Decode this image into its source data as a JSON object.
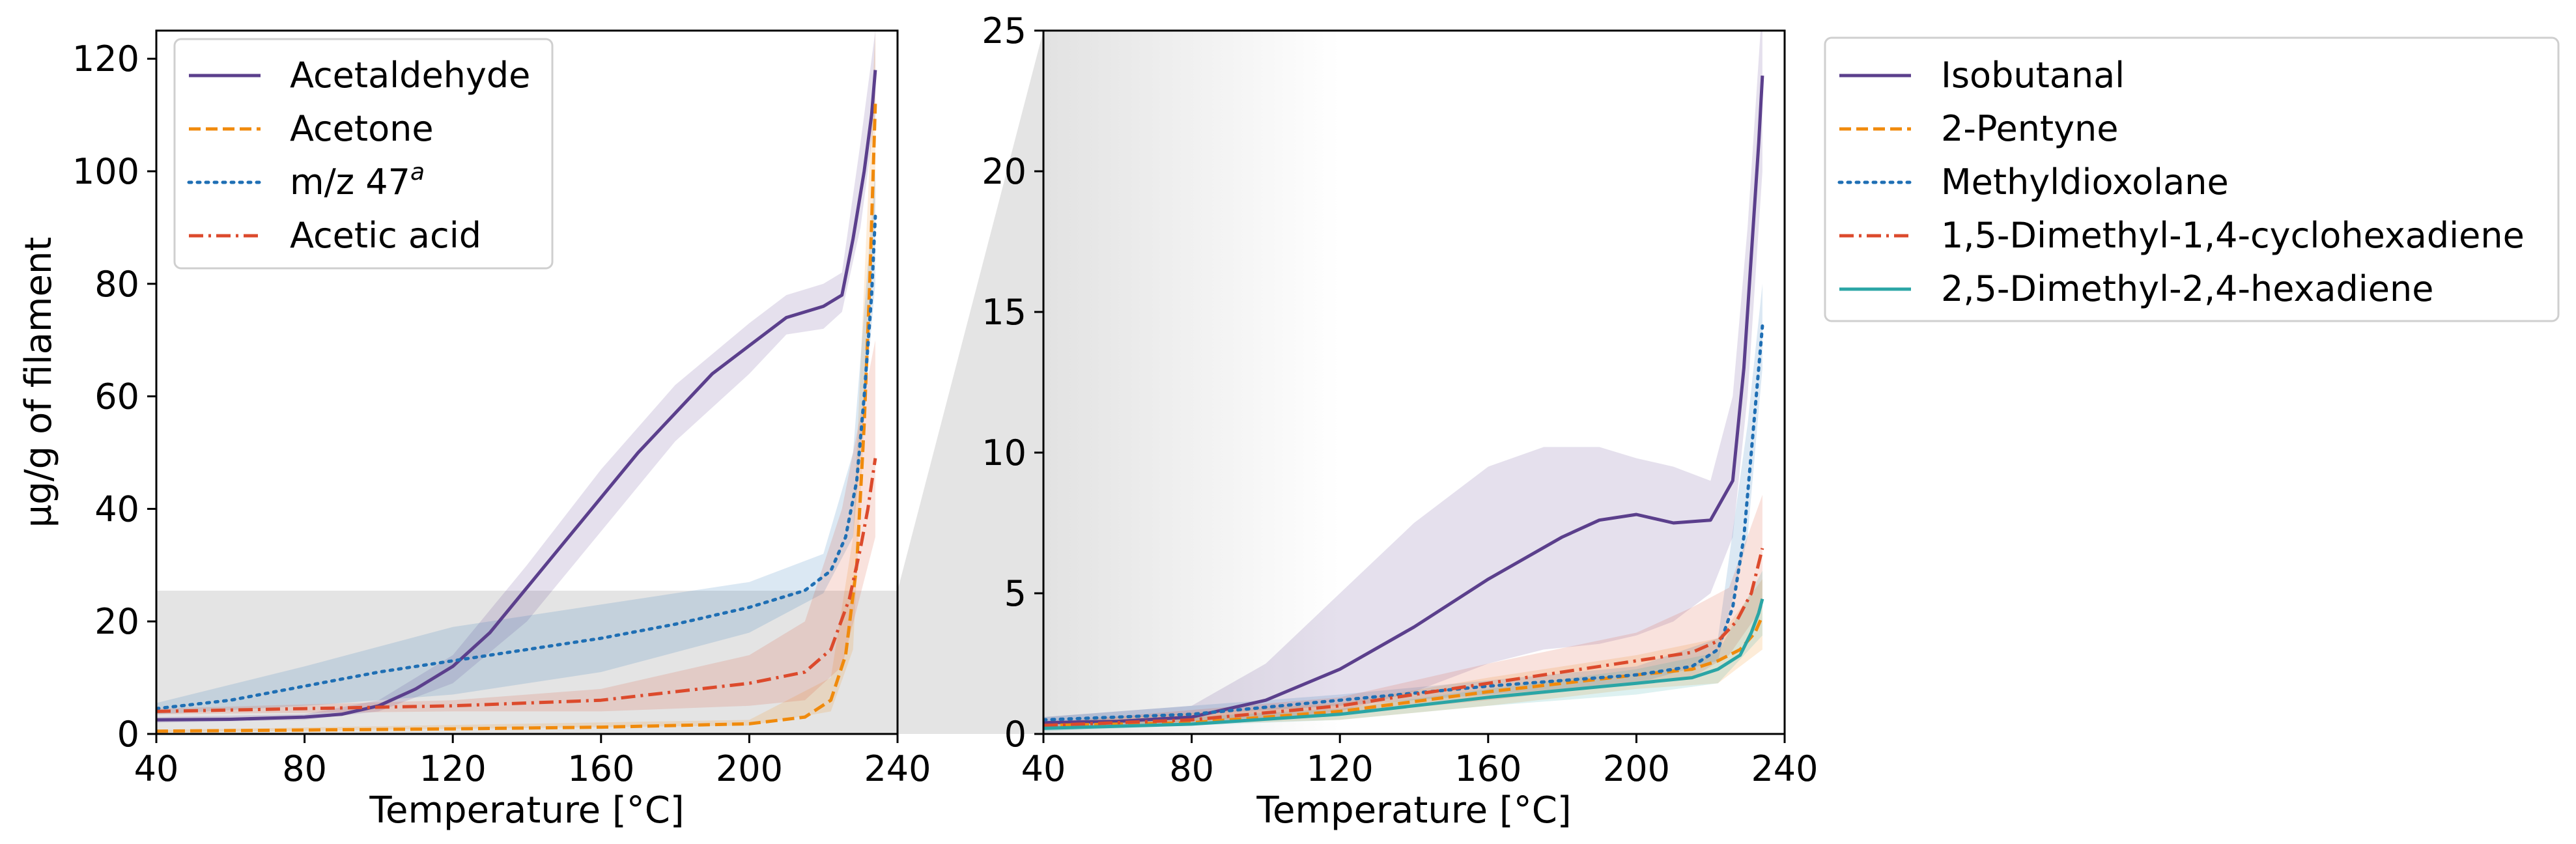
{
  "chart_data": [
    {
      "type": "line",
      "xlabel": "Temperature [°C]",
      "ylabel": "µg/g of filament",
      "xlim": [
        40,
        240
      ],
      "ylim": [
        0,
        125
      ],
      "xticks": [
        40,
        80,
        120,
        160,
        200,
        240
      ],
      "yticks": [
        0,
        20,
        40,
        60,
        80,
        100,
        120
      ],
      "legend_position": "top-left",
      "zoom_region": {
        "x": [
          40,
          240
        ],
        "y": [
          0,
          25
        ]
      },
      "series": [
        {
          "name": "Acetaldehyde",
          "color": "#5b3f8c",
          "style": "solid",
          "points": [
            [
              40,
              2.5
            ],
            [
              60,
              2.6
            ],
            [
              80,
              3
            ],
            [
              90,
              3.5
            ],
            [
              100,
              5
            ],
            [
              110,
              8
            ],
            [
              120,
              12
            ],
            [
              130,
              18
            ],
            [
              140,
              26
            ],
            [
              150,
              34
            ],
            [
              160,
              42
            ],
            [
              170,
              50
            ],
            [
              180,
              57
            ],
            [
              190,
              64
            ],
            [
              200,
              69
            ],
            [
              210,
              74
            ],
            [
              220,
              76
            ],
            [
              225,
              78
            ],
            [
              228,
              88
            ],
            [
              231,
              100
            ],
            [
              233,
              110
            ],
            [
              234,
              118
            ]
          ],
          "band": [
            [
              40,
              2,
              3
            ],
            [
              80,
              2.5,
              3.5
            ],
            [
              100,
              4,
              6
            ],
            [
              120,
              9,
              14
            ],
            [
              140,
              20,
              30
            ],
            [
              160,
              36,
              47
            ],
            [
              180,
              52,
              62
            ],
            [
              200,
              64,
              73
            ],
            [
              210,
              71,
              78
            ],
            [
              220,
              72,
              80
            ],
            [
              225,
              75,
              82
            ],
            [
              230,
              90,
              105
            ],
            [
              234,
              110,
              125
            ]
          ]
        },
        {
          "name": "Acetone",
          "color": "#f08a0c",
          "style": "dashed",
          "points": [
            [
              40,
              0.5
            ],
            [
              80,
              0.7
            ],
            [
              120,
              0.9
            ],
            [
              160,
              1.2
            ],
            [
              200,
              1.8
            ],
            [
              215,
              3
            ],
            [
              222,
              6
            ],
            [
              226,
              14
            ],
            [
              229,
              30
            ],
            [
              231,
              55
            ],
            [
              232.5,
              80
            ],
            [
              234,
              112
            ]
          ],
          "band": [
            [
              40,
              0.3,
              0.7
            ],
            [
              200,
              1.5,
              2.5
            ],
            [
              222,
              4,
              10
            ],
            [
              228,
              15,
              35
            ],
            [
              234,
              95,
              125
            ]
          ]
        },
        {
          "name": "m/z 47",
          "name_superscript": "a",
          "color": "#1f6fb4",
          "style": "dotted",
          "points": [
            [
              40,
              4.5
            ],
            [
              60,
              6
            ],
            [
              80,
              8.5
            ],
            [
              100,
              11
            ],
            [
              120,
              13
            ],
            [
              140,
              15
            ],
            [
              160,
              17
            ],
            [
              180,
              19.5
            ],
            [
              200,
              22.5
            ],
            [
              215,
              25.5
            ],
            [
              222,
              29
            ],
            [
              226,
              35
            ],
            [
              229,
              45
            ],
            [
              231,
              60
            ],
            [
              233,
              78
            ],
            [
              234,
              92
            ]
          ],
          "band": [
            [
              40,
              3.5,
              5.5
            ],
            [
              80,
              5,
              12
            ],
            [
              120,
              7,
              19
            ],
            [
              160,
              11,
              23
            ],
            [
              200,
              18,
              27
            ],
            [
              220,
              25,
              32
            ],
            [
              228,
              35,
              50
            ],
            [
              234,
              80,
              100
            ]
          ]
        },
        {
          "name": "Acetic acid",
          "color": "#dc4a2c",
          "style": "dashdot",
          "points": [
            [
              40,
              4
            ],
            [
              80,
              4.5
            ],
            [
              120,
              5
            ],
            [
              160,
              6
            ],
            [
              200,
              9
            ],
            [
              215,
              11
            ],
            [
              222,
              15
            ],
            [
              227,
              24
            ],
            [
              230,
              33
            ],
            [
              232,
              40
            ],
            [
              234,
              49
            ]
          ],
          "band": [
            [
              40,
              3.5,
              4.5
            ],
            [
              120,
              4,
              6
            ],
            [
              160,
              4,
              8
            ],
            [
              200,
              5,
              14
            ],
            [
              215,
              6,
              20
            ],
            [
              225,
              12,
              40
            ],
            [
              234,
              35,
              70
            ]
          ]
        }
      ]
    },
    {
      "type": "line",
      "xlabel": "Temperature [°C]",
      "ylabel": "",
      "xlim": [
        40,
        240
      ],
      "ylim": [
        0,
        25
      ],
      "xticks": [
        40,
        80,
        120,
        160,
        200,
        240
      ],
      "yticks": [
        0,
        5,
        10,
        15,
        20,
        25
      ],
      "legend_position": "outside-right",
      "series": [
        {
          "name": "Isobutanal",
          "color": "#5b3f8c",
          "style": "solid",
          "points": [
            [
              40,
              0.4
            ],
            [
              60,
              0.45
            ],
            [
              80,
              0.6
            ],
            [
              100,
              1.2
            ],
            [
              120,
              2.3
            ],
            [
              140,
              3.8
            ],
            [
              160,
              5.5
            ],
            [
              180,
              7
            ],
            [
              190,
              7.6
            ],
            [
              200,
              7.8
            ],
            [
              210,
              7.5
            ],
            [
              220,
              7.6
            ],
            [
              226,
              9
            ],
            [
              229,
              13
            ],
            [
              231,
              17
            ],
            [
              233,
              21
            ],
            [
              234,
              23.4
            ]
          ],
          "band": [
            [
              40,
              0.2,
              0.6
            ],
            [
              80,
              0.3,
              1
            ],
            [
              100,
              0.5,
              2.5
            ],
            [
              120,
              0.8,
              5
            ],
            [
              140,
              1.5,
              7.5
            ],
            [
              160,
              2.5,
              9.5
            ],
            [
              175,
              3,
              10.2
            ],
            [
              190,
              3.2,
              10.2
            ],
            [
              200,
              3.5,
              9.8
            ],
            [
              210,
              4,
              9.5
            ],
            [
              220,
              5,
              9
            ],
            [
              226,
              7,
              12
            ],
            [
              230,
              12,
              18
            ],
            [
              234,
              20,
              26
            ]
          ]
        },
        {
          "name": "2-Pentyne",
          "color": "#f08a0c",
          "style": "dashed",
          "points": [
            [
              40,
              0.3
            ],
            [
              80,
              0.4
            ],
            [
              120,
              0.8
            ],
            [
              160,
              1.5
            ],
            [
              200,
              2.1
            ],
            [
              215,
              2.3
            ],
            [
              222,
              2.6
            ],
            [
              228,
              3
            ],
            [
              232,
              3.6
            ],
            [
              234,
              4.2
            ]
          ],
          "band": [
            [
              40,
              0.2,
              0.4
            ],
            [
              120,
              0.5,
              1.1
            ],
            [
              160,
              1,
              2
            ],
            [
              200,
              1.6,
              2.8
            ],
            [
              222,
              1.8,
              3.4
            ],
            [
              234,
              3,
              5.5
            ]
          ]
        },
        {
          "name": "Methyldioxolane",
          "color": "#1f6fb4",
          "style": "dotted",
          "points": [
            [
              40,
              0.5
            ],
            [
              80,
              0.7
            ],
            [
              120,
              1.2
            ],
            [
              160,
              1.7
            ],
            [
              200,
              2.1
            ],
            [
              215,
              2.4
            ],
            [
              222,
              3
            ],
            [
              226,
              4.5
            ],
            [
              229,
              7
            ],
            [
              231,
              10
            ],
            [
              233,
              13
            ],
            [
              234,
              14.5
            ]
          ],
          "band": [
            [
              40,
              0.4,
              0.6
            ],
            [
              120,
              1,
              1.4
            ],
            [
              200,
              1.8,
              2.4
            ],
            [
              222,
              2.6,
              3.4
            ],
            [
              230,
              7,
              11
            ],
            [
              234,
              13,
              16
            ]
          ]
        },
        {
          "name": "1,5-Dimethyl-1,4-cyclohexadiene",
          "color": "#dc4a2c",
          "style": "dashdot",
          "points": [
            [
              40,
              0.3
            ],
            [
              80,
              0.5
            ],
            [
              120,
              1
            ],
            [
              160,
              1.8
            ],
            [
              200,
              2.6
            ],
            [
              215,
              2.9
            ],
            [
              222,
              3.3
            ],
            [
              227,
              4
            ],
            [
              231,
              5
            ],
            [
              234,
              6.6
            ]
          ],
          "band": [
            [
              40,
              0.2,
              0.4
            ],
            [
              120,
              0.7,
              1.3
            ],
            [
              160,
              1.2,
              2.5
            ],
            [
              200,
              1.8,
              3.6
            ],
            [
              215,
              2,
              4.5
            ],
            [
              225,
              2.8,
              5.2
            ],
            [
              234,
              4.5,
              8.5
            ]
          ]
        },
        {
          "name": "2,5-Dimethyl-2,4-hexadiene",
          "color": "#2aa5a5",
          "style": "solid",
          "points": [
            [
              40,
              0.2
            ],
            [
              80,
              0.35
            ],
            [
              120,
              0.7
            ],
            [
              160,
              1.3
            ],
            [
              200,
              1.8
            ],
            [
              215,
              2
            ],
            [
              222,
              2.3
            ],
            [
              228,
              2.8
            ],
            [
              231,
              3.6
            ],
            [
              233,
              4.3
            ],
            [
              234,
              4.8
            ]
          ],
          "band": [
            [
              40,
              0.1,
              0.3
            ],
            [
              120,
              0.5,
              0.9
            ],
            [
              160,
              1,
              1.6
            ],
            [
              200,
              1.4,
              2.3
            ],
            [
              222,
              1.8,
              2.9
            ],
            [
              234,
              3.5,
              5.8
            ]
          ]
        }
      ]
    }
  ]
}
